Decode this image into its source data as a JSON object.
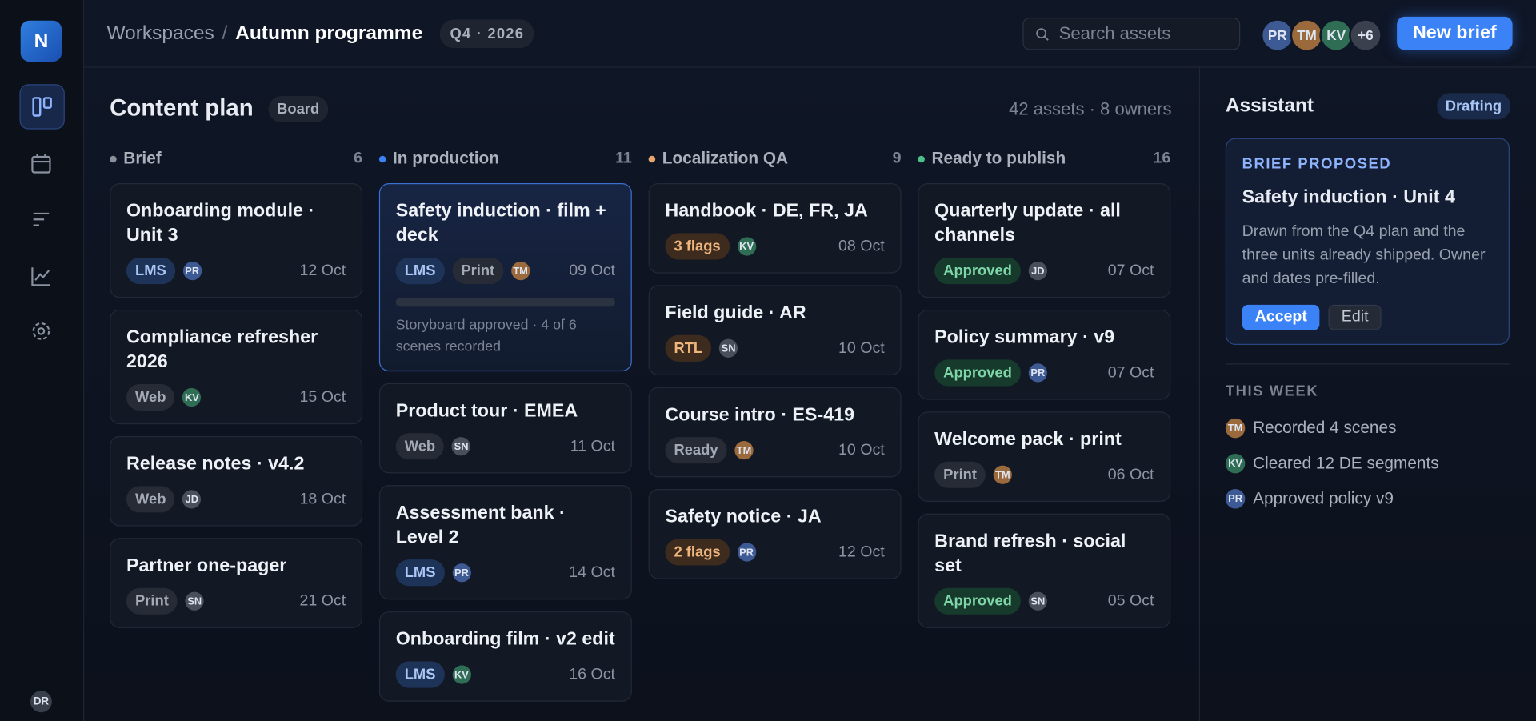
{
  "sidebar": {
    "logo": "N",
    "user": "DR"
  },
  "header": {
    "breadcrumb": [
      "Workspaces",
      "Autumn programme"
    ],
    "separator": "/",
    "period": "Q4 · 2026",
    "search_placeholder": "Search assets",
    "avatars": [
      "PR",
      "TM",
      "KV"
    ],
    "avatar_overflow": "+6",
    "primary_action": "New brief"
  },
  "owner_colors": {
    "PR": "#3d5a94",
    "TM": "#9a6a3c",
    "KV": "#2f6e55",
    "JD": "#4a4f5c",
    "SN": "#4a4f5c",
    "DR": "#3a3f4c"
  },
  "tag_tones": {
    "blue": [
      "#1e3358",
      "#a9c6f5"
    ],
    "grey": [
      "#262b36",
      "#a3a9b5"
    ],
    "orange": [
      "#3d2c1e",
      "#f0b57d"
    ],
    "green": [
      "#163a2c",
      "#7fd6a8"
    ]
  },
  "board": {
    "title": "Content plan",
    "view": "Board",
    "summary": "42 assets · 8 owners",
    "columns": [
      {
        "name": "Brief",
        "count": 6,
        "color": "#8b909a",
        "cards": [
          {
            "title": "Onboarding module · Unit 3",
            "tags": [
              {
                "label": "LMS",
                "tone": "blue"
              }
            ],
            "owner": "PR",
            "date": "12 Oct"
          },
          {
            "title": "Compliance refresher 2026",
            "tags": [
              {
                "label": "Web",
                "tone": "grey"
              }
            ],
            "owner": "KV",
            "date": "15 Oct"
          },
          {
            "title": "Release notes · v4.2",
            "tags": [
              {
                "label": "Web",
                "tone": "grey"
              }
            ],
            "owner": "JD",
            "date": "18 Oct"
          },
          {
            "title": "Partner one-pager",
            "tags": [
              {
                "label": "Print",
                "tone": "grey"
              }
            ],
            "owner": "SN",
            "date": "21 Oct"
          }
        ]
      },
      {
        "name": "In production",
        "count": 11,
        "color": "#3b82f6",
        "cards": [
          {
            "title": "Safety induction · film + deck",
            "tags": [
              {
                "label": "LMS",
                "tone": "blue"
              },
              {
                "label": "Print",
                "tone": "grey"
              }
            ],
            "owner": "TM",
            "date": "09 Oct",
            "note": "Storyboard approved · 4 of 6 scenes recorded",
            "selected": true
          },
          {
            "title": "Product tour · EMEA",
            "tags": [
              {
                "label": "Web",
                "tone": "grey"
              }
            ],
            "owner": "SN",
            "date": "11 Oct"
          },
          {
            "title": "Assessment bank · Level 2",
            "tags": [
              {
                "label": "LMS",
                "tone": "blue"
              }
            ],
            "owner": "PR",
            "date": "14 Oct"
          },
          {
            "title": "Onboarding film · v2 edit",
            "tags": [
              {
                "label": "LMS",
                "tone": "blue"
              }
            ],
            "owner": "KV",
            "date": "16 Oct"
          }
        ]
      },
      {
        "name": "Localization QA",
        "count": 9,
        "color": "#e8a66c",
        "cards": [
          {
            "title": "Handbook · DE, FR, JA",
            "tags": [
              {
                "label": "3 flags",
                "tone": "orange"
              }
            ],
            "owner": "KV",
            "date": "08 Oct"
          },
          {
            "title": "Field guide · AR",
            "tags": [
              {
                "label": "RTL",
                "tone": "orange"
              }
            ],
            "owner": "SN",
            "date": "10 Oct"
          },
          {
            "title": "Course intro · ES-419",
            "tags": [
              {
                "label": "Ready",
                "tone": "grey"
              }
            ],
            "owner": "TM",
            "date": "10 Oct"
          },
          {
            "title": "Safety notice · JA",
            "tags": [
              {
                "label": "2 flags",
                "tone": "orange"
              }
            ],
            "owner": "PR",
            "date": "12 Oct"
          }
        ]
      },
      {
        "name": "Ready to publish",
        "count": 16,
        "color": "#4fbf8a",
        "cards": [
          {
            "title": "Quarterly update · all channels",
            "tags": [
              {
                "label": "Approved",
                "tone": "green"
              }
            ],
            "owner": "JD",
            "date": "07 Oct"
          },
          {
            "title": "Policy summary · v9",
            "tags": [
              {
                "label": "Approved",
                "tone": "green"
              }
            ],
            "owner": "PR",
            "date": "07 Oct"
          },
          {
            "title": "Welcome pack · print",
            "tags": [
              {
                "label": "Print",
                "tone": "grey"
              }
            ],
            "owner": "TM",
            "date": "06 Oct"
          },
          {
            "title": "Brand refresh · social set",
            "tags": [
              {
                "label": "Approved",
                "tone": "green"
              }
            ],
            "owner": "SN",
            "date": "05 Oct"
          }
        ]
      }
    ]
  },
  "assistant": {
    "title": "Assistant",
    "status": "Drafting",
    "proposal": {
      "label": "BRIEF PROPOSED",
      "title": "Safety induction · Unit 4",
      "body": "Drawn from the Q4 plan and the three units already shipped. Owner and dates pre-filled.",
      "accept": "Accept",
      "edit": "Edit"
    },
    "section": "THIS WEEK",
    "activity": [
      {
        "who": "TM",
        "text": "Recorded 4 scenes"
      },
      {
        "who": "KV",
        "text": "Cleared 12 DE segments"
      },
      {
        "who": "PR",
        "text": "Approved policy v9"
      }
    ]
  }
}
